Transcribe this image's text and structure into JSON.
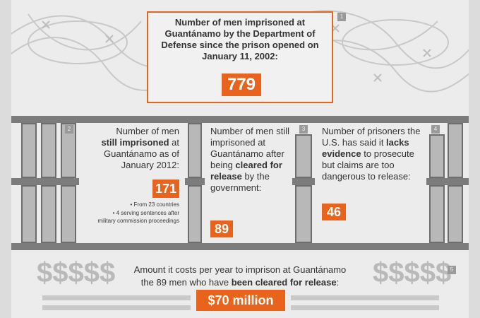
{
  "badges": [
    "1",
    "2",
    "3",
    "4",
    "5"
  ],
  "top": {
    "title": "Number of men imprisoned at Guantánamo by the Department of Defense since the prison opened on January 11, 2002:",
    "value": "779"
  },
  "box2": {
    "line1": "Number of men",
    "strong": "still imprisoned",
    "line3": " at Guantánamo as of January 2012:",
    "value": "171",
    "bullet1": "• From 23 countries",
    "bullet2": "• 4 serving sentences after military commission proceedings"
  },
  "box3": {
    "text1": "Number of men still imprisoned at Guantánamo after being ",
    "strong": "cleared for release",
    "text2": " by the government:",
    "value": "89"
  },
  "box4": {
    "text1": "Number of prisoners the U.S. has said it ",
    "strong": "lacks evidence",
    "text2": " to prosecute but claims are too dangerous to release:",
    "value": "46"
  },
  "bottom": {
    "line1": "Amount it costs per year to imprison at Guantánamo",
    "line2a": "the 89 men who have ",
    "strong": "been cleared for release",
    "line2b": ":",
    "value": "$70 million",
    "dollars": "$$$$$"
  },
  "colors": {
    "accent": "#e8641c",
    "bars": "#7c7c7c",
    "background": "#ececec"
  }
}
